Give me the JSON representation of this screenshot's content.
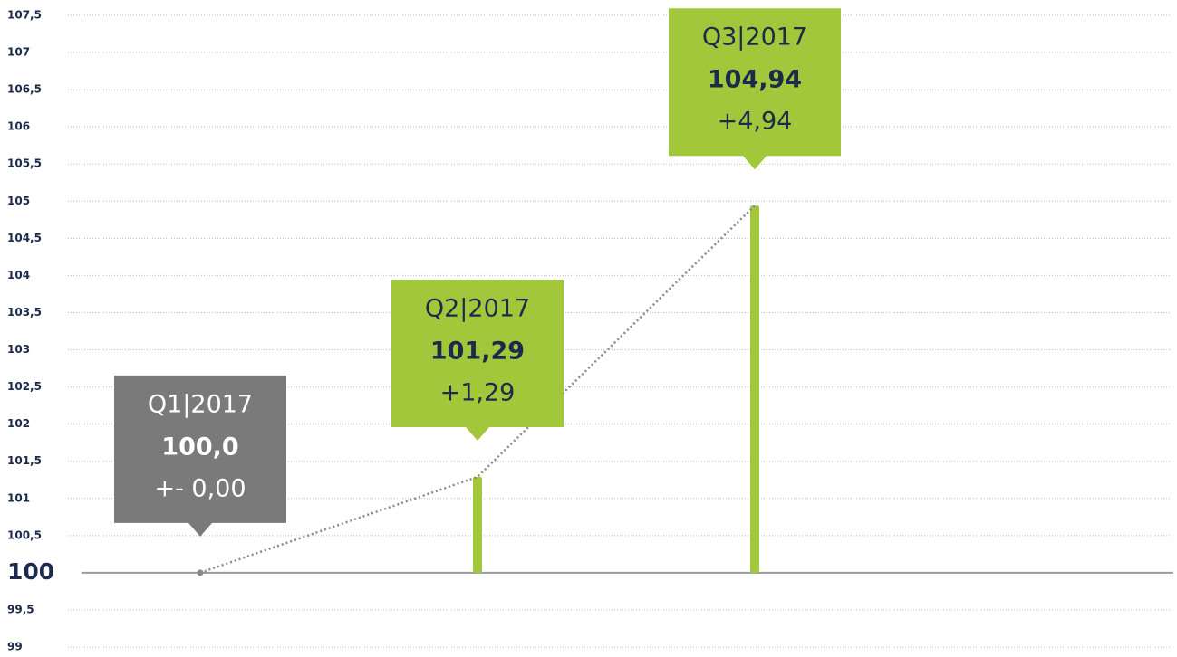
{
  "chart_data": {
    "type": "bar",
    "categories": [
      "Q1|2017",
      "Q2|2017",
      "Q3|2017"
    ],
    "values": [
      100,
      101.29,
      104.94
    ],
    "value_labels": [
      "100,0",
      "101,29",
      "104,94"
    ],
    "change_labels": [
      "+- 0,00",
      "+1,29",
      "+4,94"
    ],
    "color": "#a2c73b",
    "box_colors": [
      "#7a7a7a",
      "#a2c73b",
      "#a2c73b"
    ],
    "box_text_colors": [
      "#ffffff",
      "#1c2b4b",
      "#1c2b4b"
    ],
    "line_color": "#8a8a8a",
    "ylim": [
      99,
      107.5
    ],
    "yticks": [
      99,
      {
        "value": 99.5,
        "label": "99,5"
      },
      100,
      {
        "value": 100.5,
        "label": "100,5"
      },
      101,
      {
        "value": 101.5,
        "label": "101,5"
      },
      102,
      {
        "value": 102.5,
        "label": "102,5"
      },
      103,
      {
        "value": 103.5,
        "label": "103,5"
      },
      104,
      {
        "value": 104.5,
        "label": "104,5"
      },
      105,
      {
        "value": 105.5,
        "label": "105,5"
      },
      106,
      {
        "value": 106.5,
        "label": "106,5"
      },
      107,
      {
        "value": 107.5,
        "label": "107,5"
      }
    ],
    "baseline": 100,
    "grid": true
  }
}
